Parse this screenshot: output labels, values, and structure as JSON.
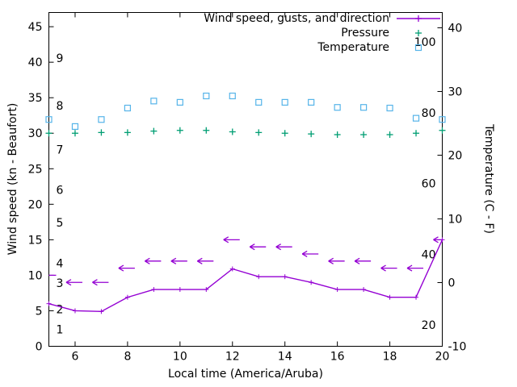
{
  "chart_data": {
    "type": "line",
    "xlabel": "Local time (America/Aruba)",
    "ylabel_left": "Wind speed (kn - Beaufort)",
    "ylabel_right": "Temperature (C - F)",
    "xlim": [
      5,
      20
    ],
    "xticks": [
      6,
      8,
      10,
      12,
      14,
      16,
      18,
      20
    ],
    "ylim_left": [
      0,
      47
    ],
    "yticks_left": [
      0,
      5,
      10,
      15,
      20,
      25,
      30,
      35,
      40,
      45
    ],
    "ylim_right": [
      -10,
      42.4
    ],
    "yticks_right": [
      -10,
      0,
      10,
      20,
      30,
      40
    ],
    "beaufort_scale_labels": [
      {
        "label": "1",
        "kn": 2.4
      },
      {
        "label": "2",
        "kn": 5.2
      },
      {
        "label": "3",
        "kn": 8.9
      },
      {
        "label": "4",
        "kn": 11.7
      },
      {
        "label": "5",
        "kn": 17.4
      },
      {
        "label": "6",
        "kn": 22.0
      },
      {
        "label": "7",
        "kn": 27.7
      },
      {
        "label": "8",
        "kn": 33.9
      },
      {
        "label": "9",
        "kn": 40.6
      }
    ],
    "fahrenheit_scale_labels": [
      {
        "label": "20",
        "f": 20
      },
      {
        "label": "40",
        "f": 40
      },
      {
        "label": "60",
        "f": 60
      },
      {
        "label": "80",
        "f": 80
      },
      {
        "label": "100",
        "f": 100
      }
    ],
    "x": [
      5,
      6,
      7,
      8,
      9,
      10,
      11,
      12,
      13,
      14,
      15,
      16,
      17,
      18,
      19,
      20
    ],
    "series": [
      {
        "name": "Wind speed",
        "type": "line-plus",
        "axis": "left",
        "color": "#9400d3",
        "values": [
          6.0,
          5.0,
          4.9,
          6.9,
          8.0,
          8.0,
          8.0,
          10.9,
          9.8,
          9.8,
          9.0,
          8.0,
          8.0,
          6.9,
          6.9,
          15.0
        ]
      },
      {
        "name": "Wind gusts and direction",
        "type": "arrow-left",
        "axis": "left",
        "color": "#9400d3",
        "values": [
          10,
          9,
          9,
          11,
          12,
          12,
          12,
          15,
          14,
          14,
          13,
          12,
          12,
          11,
          11,
          15
        ]
      },
      {
        "name": "Pressure",
        "type": "plus",
        "axis": "left",
        "color": "#009e73",
        "values": [
          30.0,
          30.0,
          30.1,
          30.1,
          30.3,
          30.4,
          30.4,
          30.2,
          30.1,
          30.0,
          29.9,
          29.8,
          29.8,
          29.8,
          30.0,
          30.4
        ]
      },
      {
        "name": "Temperature",
        "type": "square",
        "axis": "right",
        "color": "#56b4e9",
        "values": [
          25.6,
          24.5,
          25.6,
          27.4,
          28.5,
          28.3,
          29.3,
          29.3,
          28.3,
          28.3,
          28.3,
          27.5,
          27.5,
          27.4,
          25.8,
          25.6
        ]
      }
    ],
    "legend": {
      "position": "top-right",
      "entries": [
        {
          "label": "Wind speed, gusts, and direction",
          "marker": "line-plus",
          "color": "#9400d3"
        },
        {
          "label": "Pressure",
          "marker": "plus",
          "color": "#009e73"
        },
        {
          "label": "Temperature",
          "marker": "square",
          "color": "#56b4e9"
        }
      ]
    },
    "colors": {
      "axis": "#000000",
      "background": "#ffffff"
    }
  }
}
